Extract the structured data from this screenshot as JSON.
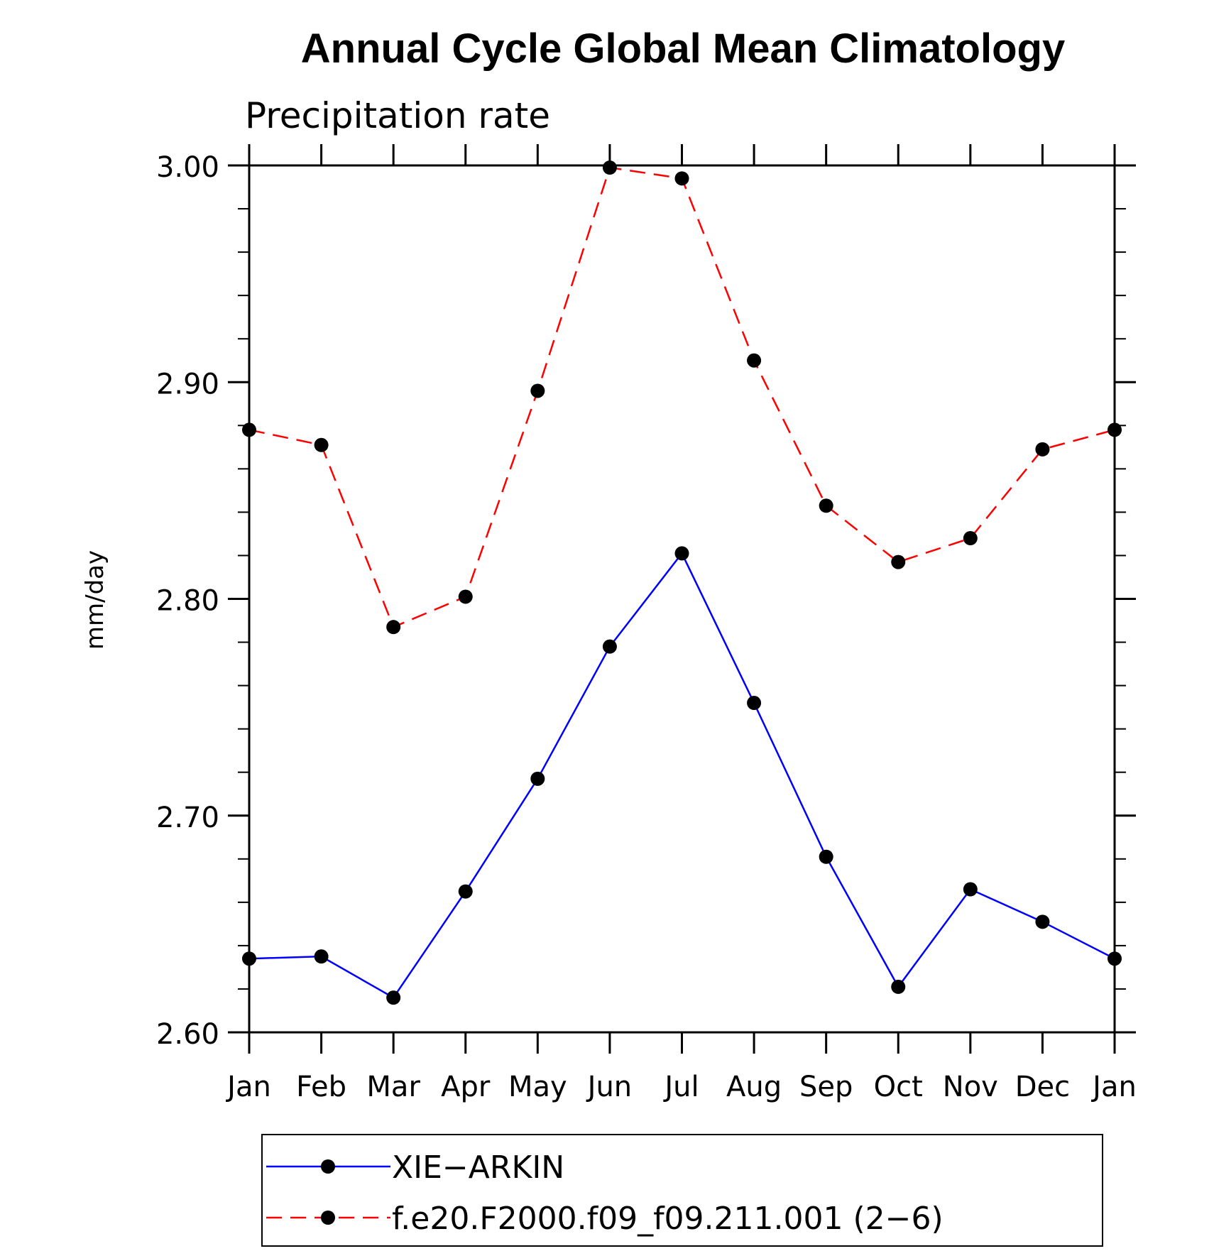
{
  "chart_data": {
    "type": "line",
    "title": "Annual Cycle Global Mean Climatology",
    "subtitle": "Precipitation rate",
    "xlabel": "",
    "ylabel": "mm/day",
    "categories": [
      "Jan",
      "Feb",
      "Mar",
      "Apr",
      "May",
      "Jun",
      "Jul",
      "Aug",
      "Sep",
      "Oct",
      "Nov",
      "Dec",
      "Jan"
    ],
    "ylim": [
      2.6,
      3.0
    ],
    "yticks": [
      2.6,
      2.7,
      2.8,
      2.9,
      3.0
    ],
    "ytick_labels": [
      "2.60",
      "2.70",
      "2.80",
      "2.90",
      "3.00"
    ],
    "y_minor_step": 0.02,
    "grid": false,
    "legend_position": "bottom",
    "series": [
      {
        "name": "XIE−ARKIN",
        "color": "#0000ff",
        "line_style": "solid",
        "marker": "filled-circle",
        "values": [
          2.634,
          2.635,
          2.616,
          2.665,
          2.717,
          2.778,
          2.821,
          2.752,
          2.681,
          2.621,
          2.666,
          2.651,
          2.634
        ]
      },
      {
        "name": "f.e20.F2000.f09_f09.211.001 (2−6)",
        "color": "#ff0000",
        "line_style": "dashed",
        "marker": "filled-circle",
        "values": [
          2.878,
          2.871,
          2.787,
          2.801,
          2.896,
          2.999,
          2.994,
          2.91,
          2.843,
          2.817,
          2.828,
          2.869,
          2.878
        ]
      }
    ]
  }
}
